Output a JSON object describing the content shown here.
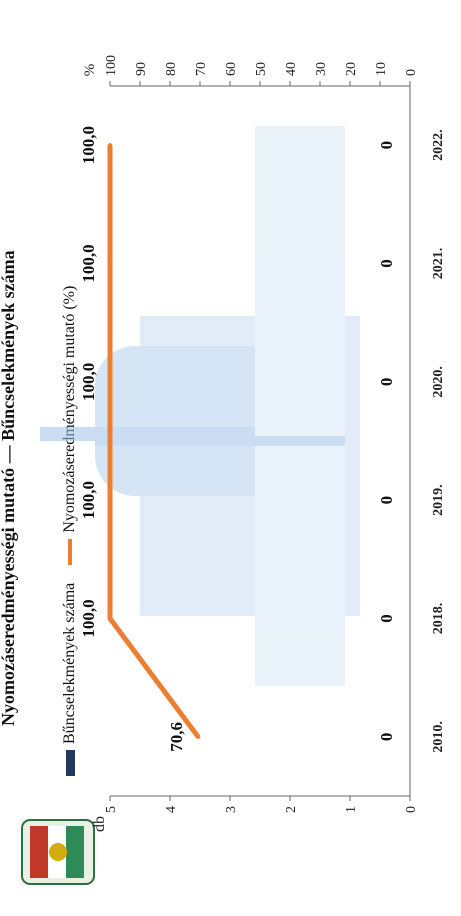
{
  "chart_data": {
    "type": "bar",
    "title": "Nyomozáseredményességi mutató — Bűncselekmények száma",
    "categories": [
      "2010.",
      "2018.",
      "2019.",
      "2020.",
      "2021.",
      "2022."
    ],
    "series": [
      {
        "name": "Bűncselekmények száma",
        "type": "bar",
        "axis": "left",
        "color": "#1f3864",
        "values": [
          0,
          0,
          0,
          0,
          0,
          0
        ]
      },
      {
        "name": "Nyomozáseredményességi mutató (%)",
        "type": "line",
        "axis": "right",
        "color": "#ed7d31",
        "values": [
          70.6,
          100.0,
          100.0,
          100.0,
          100.0,
          100.0
        ]
      }
    ],
    "bar_labels": [
      "0",
      "0",
      "0",
      "0",
      "0",
      "0"
    ],
    "line_labels": [
      "70,6",
      "100,0",
      "100,0",
      "100,0",
      "100,0",
      "100,0"
    ],
    "y_left": {
      "label": "db",
      "ticks": [
        "0",
        "1",
        "2",
        "3",
        "4",
        "5"
      ],
      "min": 0,
      "max": 5
    },
    "y_right": {
      "label": "%",
      "ticks": [
        "0",
        "10",
        "20",
        "30",
        "40",
        "50",
        "60",
        "70",
        "80",
        "90",
        "100"
      ],
      "min": 0,
      "max": 100
    },
    "legend_placement": "top",
    "grid": false
  },
  "colors": {
    "bar": "#1f3864",
    "line": "#ed7d31",
    "watermark": "#9fc3e8"
  },
  "icons": [
    "police-badge-icon"
  ]
}
